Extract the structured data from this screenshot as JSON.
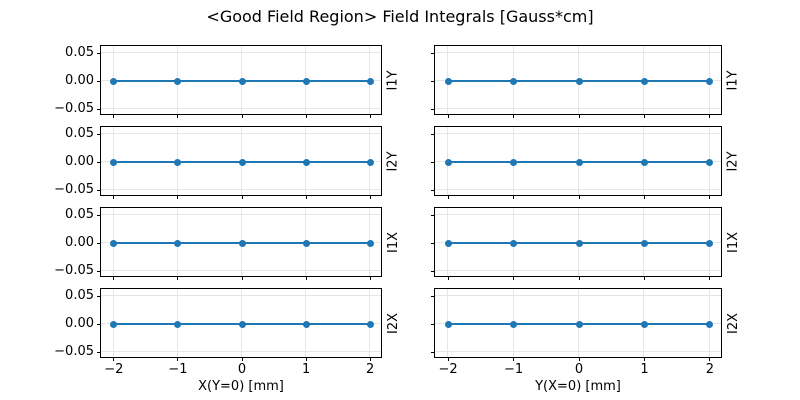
{
  "chart_data": {
    "type": "line",
    "title": "<Good Field Region> Field Integrals [Gauss*cm]",
    "grid": true,
    "legend": null,
    "layout": "4 rows x 2 columns of subplots, shared axes style",
    "x": [
      -2,
      -1,
      0,
      1,
      2
    ],
    "xticks": [
      -2,
      -1,
      0,
      1,
      2
    ],
    "xticklabels": [
      "−2",
      "−1",
      "0",
      "1",
      "2"
    ],
    "yticks": [
      0.05,
      0.0,
      -0.05
    ],
    "yticklabels": [
      "0.05",
      "0.00",
      "−0.05"
    ],
    "xlim": [
      -2.2,
      2.2
    ],
    "ylim": [
      -0.0625,
      0.0625
    ],
    "columns": [
      {
        "xlabel": "X(Y=0) [mm]"
      },
      {
        "xlabel": "Y(X=0) [mm]"
      }
    ],
    "rows": [
      "I1Y",
      "I2Y",
      "I1X",
      "I2X"
    ],
    "series": [
      {
        "name": "I1Y vs X(Y=0)",
        "row": 0,
        "col": 0,
        "values": [
          0,
          0,
          0,
          0,
          0
        ]
      },
      {
        "name": "I1Y vs Y(X=0)",
        "row": 0,
        "col": 1,
        "values": [
          0,
          0,
          0,
          0,
          0
        ]
      },
      {
        "name": "I2Y vs X(Y=0)",
        "row": 1,
        "col": 0,
        "values": [
          0,
          0,
          0,
          0,
          0
        ]
      },
      {
        "name": "I2Y vs Y(X=0)",
        "row": 1,
        "col": 1,
        "values": [
          0,
          0,
          0,
          0,
          0
        ]
      },
      {
        "name": "I1X vs X(Y=0)",
        "row": 2,
        "col": 0,
        "values": [
          0,
          0,
          0,
          0,
          0
        ]
      },
      {
        "name": "I1X vs Y(X=0)",
        "row": 2,
        "col": 1,
        "values": [
          0,
          0,
          0,
          0,
          0
        ]
      },
      {
        "name": "I2X vs X(Y=0)",
        "row": 3,
        "col": 0,
        "values": [
          0,
          0,
          0,
          0,
          0
        ]
      },
      {
        "name": "I2X vs Y(X=0)",
        "row": 3,
        "col": 1,
        "values": [
          0,
          0,
          0,
          0,
          0
        ]
      }
    ],
    "marker": "o",
    "line_color": "#1f77b4",
    "grid_color": "#e6e6e6",
    "spine_color": "#000000"
  }
}
